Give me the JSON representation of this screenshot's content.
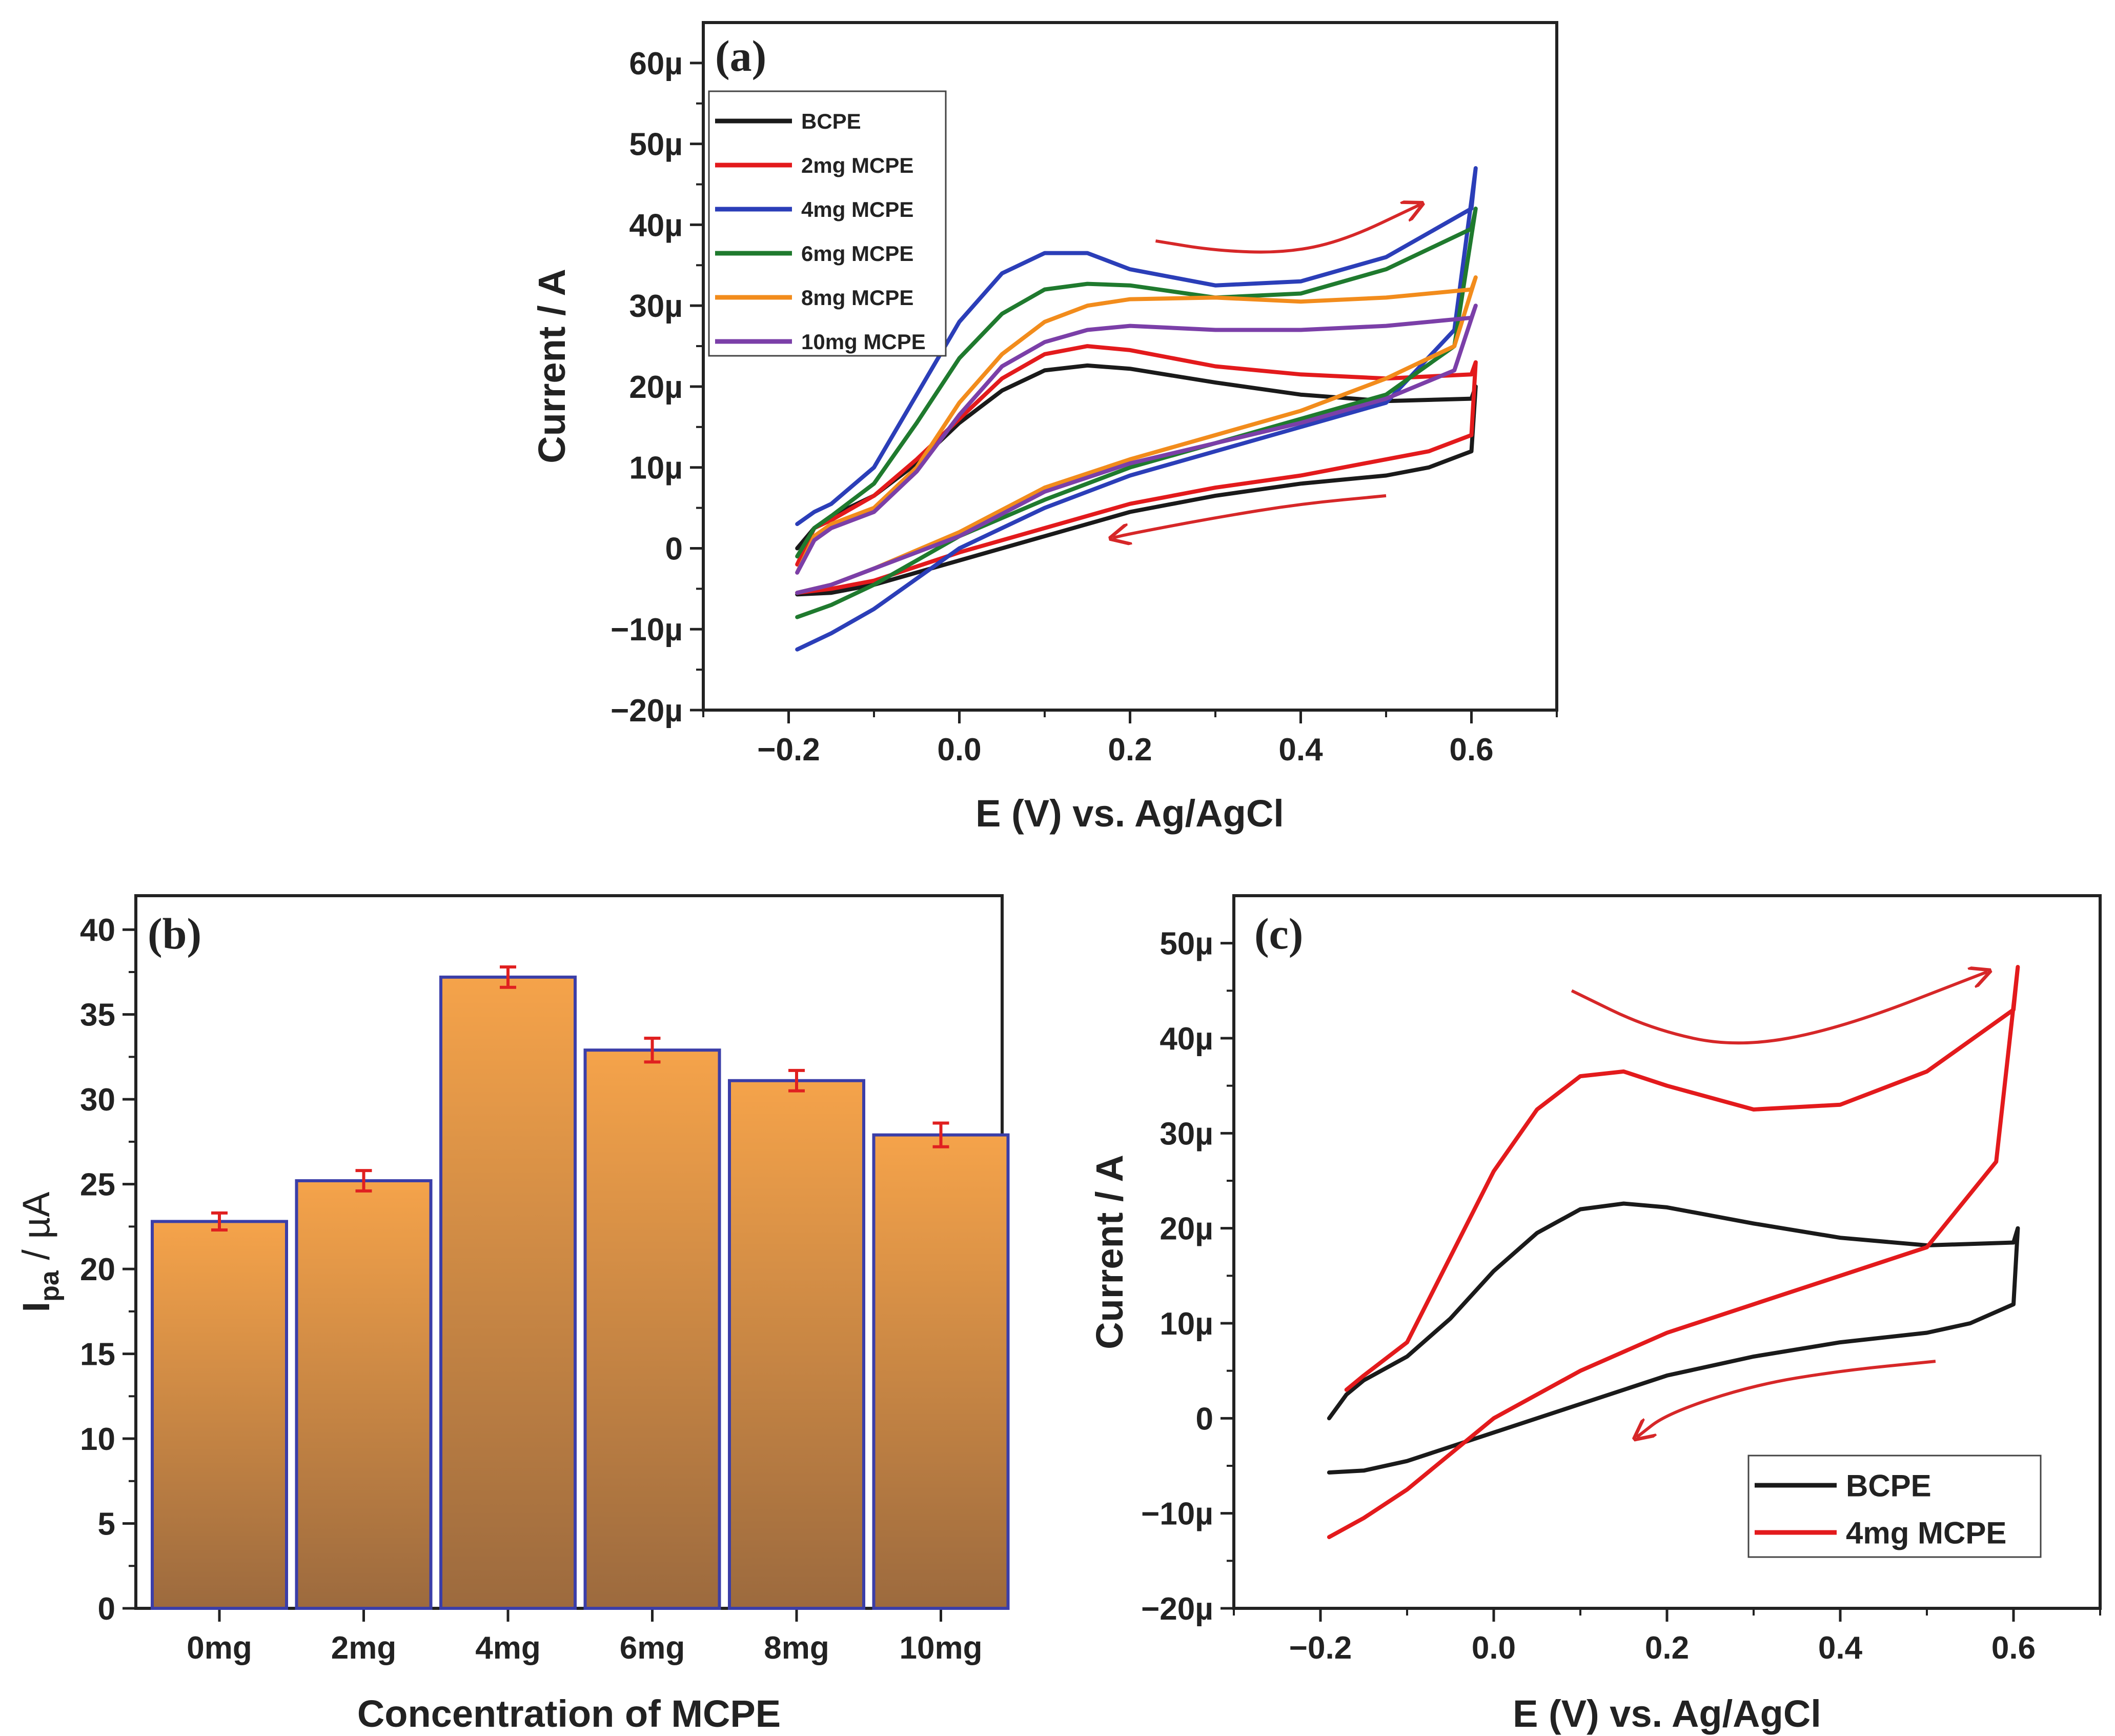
{
  "figure": {
    "colors": {
      "bcpe": "#1a1a1a",
      "mcpe2": "#e31a1c",
      "mcpe4": "#2b3eb8",
      "mcpe6": "#1f7a2e",
      "mcpe8": "#f28c1c",
      "mcpe10": "#7b3fa8",
      "arrow": "#d62728",
      "bar_top": "#f5a34a",
      "bar_bottom": "#9c6a3e",
      "bar_edge": "#3b3ea8",
      "errorbar": "#e02020"
    }
  },
  "chart_data": [
    {
      "id": "a",
      "type": "line",
      "panel_label": "(a)",
      "xlabel": "E (V) vs. Ag/AgCl",
      "ylabel": "Current / A",
      "xlim": [
        -0.3,
        0.7
      ],
      "ylim": [
        -20,
        65
      ],
      "xticks": [
        -0.2,
        0.0,
        0.2,
        0.4,
        0.6
      ],
      "xtick_labels": [
        "−0.2",
        "0.0",
        "0.2",
        "0.4",
        "0.6"
      ],
      "yticks": [
        -20,
        -10,
        0,
        10,
        20,
        30,
        40,
        50,
        60
      ],
      "ytick_labels": [
        "−20µ",
        "−10µ",
        "0",
        "10µ",
        "20µ",
        "30µ",
        "40µ",
        "50µ",
        "60µ"
      ],
      "legend_position": "top-left",
      "series": [
        {
          "name": "BCPE",
          "color": "#1a1a1a",
          "x": [
            -0.19,
            -0.17,
            -0.15,
            -0.1,
            -0.05,
            0.0,
            0.05,
            0.1,
            0.15,
            0.2,
            0.3,
            0.4,
            0.5,
            0.6,
            0.605,
            0.6,
            0.55,
            0.5,
            0.4,
            0.3,
            0.2,
            0.1,
            0.0,
            -0.1,
            -0.15,
            -0.19
          ],
          "y": [
            0.0,
            2.5,
            4.0,
            6.5,
            10.5,
            15.5,
            19.5,
            22.0,
            22.6,
            22.2,
            20.5,
            19.0,
            18.2,
            18.5,
            20.0,
            12.0,
            10.0,
            9.0,
            8.0,
            6.5,
            4.5,
            1.5,
            -1.5,
            -4.5,
            -5.5,
            -5.7
          ]
        },
        {
          "name": "2mg MCPE",
          "color": "#e31a1c",
          "x": [
            -0.19,
            -0.17,
            -0.15,
            -0.1,
            -0.05,
            0.0,
            0.05,
            0.1,
            0.15,
            0.2,
            0.3,
            0.4,
            0.5,
            0.6,
            0.605,
            0.6,
            0.55,
            0.5,
            0.4,
            0.3,
            0.2,
            0.1,
            0.0,
            -0.1,
            -0.15,
            -0.19
          ],
          "y": [
            -2.0,
            2.5,
            3.5,
            6.5,
            11.0,
            16.0,
            21.0,
            24.0,
            25.0,
            24.5,
            22.5,
            21.5,
            21.0,
            21.5,
            23.0,
            14.0,
            12.0,
            11.0,
            9.0,
            7.5,
            5.5,
            2.5,
            -0.5,
            -4.0,
            -5.0,
            -5.5
          ]
        },
        {
          "name": "4mg MCPE",
          "color": "#2b3eb8",
          "x": [
            -0.19,
            -0.17,
            -0.15,
            -0.1,
            -0.05,
            0.0,
            0.05,
            0.1,
            0.15,
            0.2,
            0.3,
            0.4,
            0.5,
            0.6,
            0.605,
            0.58,
            0.5,
            0.4,
            0.3,
            0.2,
            0.1,
            0.0,
            -0.1,
            -0.15,
            -0.19
          ],
          "y": [
            3.0,
            4.5,
            5.5,
            10.0,
            19.0,
            28.0,
            34.0,
            36.5,
            36.5,
            34.5,
            32.5,
            33.0,
            36.0,
            42.0,
            47.0,
            27.0,
            18.0,
            15.0,
            12.0,
            9.0,
            5.0,
            0.0,
            -7.5,
            -10.5,
            -12.5
          ]
        },
        {
          "name": "6mg MCPE",
          "color": "#1f7a2e",
          "x": [
            -0.19,
            -0.17,
            -0.15,
            -0.1,
            -0.05,
            0.0,
            0.05,
            0.1,
            0.15,
            0.2,
            0.3,
            0.4,
            0.5,
            0.6,
            0.605,
            0.58,
            0.5,
            0.4,
            0.3,
            0.2,
            0.1,
            0.0,
            -0.1,
            -0.15,
            -0.19
          ],
          "y": [
            -1.0,
            2.5,
            4.0,
            8.0,
            15.5,
            23.5,
            29.0,
            32.0,
            32.7,
            32.5,
            31.0,
            31.5,
            34.5,
            39.5,
            42.0,
            25.0,
            19.0,
            16.0,
            13.0,
            10.0,
            6.0,
            1.5,
            -4.5,
            -7.0,
            -8.5
          ]
        },
        {
          "name": "8mg MCPE",
          "color": "#f28c1c",
          "x": [
            -0.19,
            -0.17,
            -0.15,
            -0.1,
            -0.05,
            0.0,
            0.05,
            0.1,
            0.15,
            0.2,
            0.3,
            0.4,
            0.5,
            0.6,
            0.605,
            0.58,
            0.5,
            0.4,
            0.3,
            0.2,
            0.1,
            0.0,
            -0.1,
            -0.15,
            -0.19
          ],
          "y": [
            -3.0,
            1.5,
            3.0,
            5.0,
            10.0,
            18.0,
            24.0,
            28.0,
            30.0,
            30.8,
            31.0,
            30.5,
            31.0,
            32.0,
            33.5,
            25.0,
            21.0,
            17.0,
            14.0,
            11.0,
            7.5,
            2.0,
            -2.5,
            -4.5,
            -5.5
          ]
        },
        {
          "name": "10mg MCPE",
          "color": "#7b3fa8",
          "x": [
            -0.19,
            -0.17,
            -0.15,
            -0.1,
            -0.05,
            0.0,
            0.05,
            0.1,
            0.15,
            0.2,
            0.3,
            0.4,
            0.5,
            0.6,
            0.605,
            0.58,
            0.5,
            0.4,
            0.3,
            0.2,
            0.1,
            0.0,
            -0.1,
            -0.15,
            -0.19
          ],
          "y": [
            -3.0,
            1.0,
            2.5,
            4.5,
            9.5,
            16.5,
            22.5,
            25.5,
            27.0,
            27.5,
            27.0,
            27.0,
            27.5,
            28.5,
            30.0,
            22.0,
            18.5,
            15.5,
            13.0,
            10.5,
            7.0,
            1.5,
            -2.5,
            -4.5,
            -5.5
          ]
        }
      ],
      "arrows": [
        {
          "x": [
            0.23,
            0.3,
            0.38,
            0.45,
            0.54
          ],
          "y": [
            38.0,
            36.8,
            36.5,
            38.0,
            42.5
          ]
        },
        {
          "x": [
            0.5,
            0.4,
            0.3,
            0.2,
            0.18
          ],
          "y": [
            6.5,
            5.5,
            3.8,
            1.8,
            1.3
          ]
        }
      ]
    },
    {
      "id": "b",
      "type": "bar",
      "panel_label": "(b)",
      "categories": [
        "0mg",
        "2mg",
        "4mg",
        "6mg",
        "8mg",
        "10mg"
      ],
      "values": [
        22.8,
        25.2,
        37.2,
        32.9,
        31.1,
        27.9
      ],
      "errors": [
        0.5,
        0.6,
        0.6,
        0.7,
        0.6,
        0.7
      ],
      "xlabel": "Concentration of MCPE",
      "ylabel_main": "I",
      "ylabel_sub": "pa",
      "ylabel_unit": " / µA",
      "ylim": [
        0,
        42
      ],
      "yticks": [
        0,
        5,
        10,
        15,
        20,
        25,
        30,
        35,
        40
      ],
      "ytick_labels": [
        "0",
        "5",
        "10",
        "15",
        "20",
        "25",
        "30",
        "35",
        "40"
      ]
    },
    {
      "id": "c",
      "type": "line",
      "panel_label": "(c)",
      "xlabel": "E (V) vs. Ag/AgCl",
      "ylabel": "Current / A",
      "xlim": [
        -0.3,
        0.7
      ],
      "ylim": [
        -20,
        55
      ],
      "xticks": [
        -0.2,
        0.0,
        0.2,
        0.4,
        0.6
      ],
      "xtick_labels": [
        "−0.2",
        "0.0",
        "0.2",
        "0.4",
        "0.6"
      ],
      "yticks": [
        -20,
        -10,
        0,
        10,
        20,
        30,
        40,
        50
      ],
      "ytick_labels": [
        "−20µ",
        "−10µ",
        "0",
        "10µ",
        "20µ",
        "30µ",
        "40µ",
        "50µ"
      ],
      "legend_position": "bottom-right",
      "series": [
        {
          "name": "BCPE",
          "color": "#1a1a1a",
          "x": [
            -0.19,
            -0.17,
            -0.15,
            -0.1,
            -0.05,
            0.0,
            0.05,
            0.1,
            0.15,
            0.2,
            0.3,
            0.4,
            0.5,
            0.6,
            0.605,
            0.6,
            0.55,
            0.5,
            0.4,
            0.3,
            0.2,
            0.1,
            0.0,
            -0.1,
            -0.15,
            -0.19
          ],
          "y": [
            0.0,
            2.5,
            4.0,
            6.5,
            10.5,
            15.5,
            19.5,
            22.0,
            22.6,
            22.2,
            20.5,
            19.0,
            18.2,
            18.5,
            20.0,
            12.0,
            10.0,
            9.0,
            8.0,
            6.5,
            4.5,
            1.5,
            -1.5,
            -4.5,
            -5.5,
            -5.7
          ]
        },
        {
          "name": "4mg MCPE",
          "color": "#e31a1c",
          "x": [
            -0.17,
            -0.15,
            -0.1,
            -0.05,
            0.0,
            0.05,
            0.1,
            0.15,
            0.2,
            0.3,
            0.4,
            0.5,
            0.6,
            0.605,
            0.58,
            0.5,
            0.4,
            0.3,
            0.2,
            0.1,
            0.0,
            -0.1,
            -0.15,
            -0.19
          ],
          "y": [
            3.0,
            4.5,
            8.0,
            17.0,
            26.0,
            32.5,
            36.0,
            36.5,
            35.0,
            32.5,
            33.0,
            36.5,
            43.0,
            47.5,
            27.0,
            18.0,
            15.0,
            12.0,
            9.0,
            5.0,
            0.0,
            -7.5,
            -10.5,
            -12.5
          ]
        }
      ],
      "arrows": [
        {
          "x": [
            0.09,
            0.18,
            0.28,
            0.4,
            0.57
          ],
          "y": [
            45.0,
            41.0,
            39.0,
            41.0,
            47.0
          ]
        },
        {
          "x": [
            0.51,
            0.4,
            0.3,
            0.2,
            0.165
          ],
          "y": [
            6.0,
            5.0,
            3.5,
            0.5,
            -2.0
          ]
        }
      ]
    }
  ]
}
